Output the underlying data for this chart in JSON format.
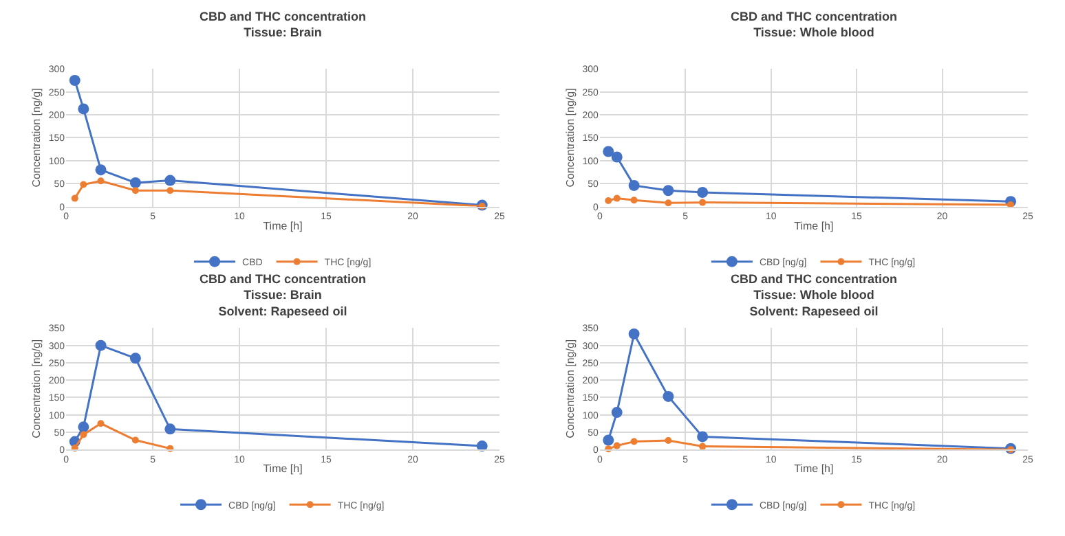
{
  "chart_data": [
    {
      "type": "line",
      "title": "CBD and THC concentration",
      "subtitle": "Tissue: Brain",
      "xlabel": "Time [h]",
      "ylabel": "Concentration [ng/g]",
      "xlim": [
        0,
        25
      ],
      "xticks": [
        0,
        5,
        10,
        15,
        20,
        25
      ],
      "ylim": [
        0,
        300
      ],
      "yticks": [
        0,
        50,
        100,
        150,
        200,
        250,
        300
      ],
      "grid": true,
      "legend": "bottom",
      "marker": "circle",
      "line_style": "solid",
      "x": [
        0.5,
        1,
        2,
        4,
        6,
        24
      ],
      "series": [
        {
          "name": "CBD",
          "color": "#4472c4",
          "values": [
            275,
            213,
            80,
            52,
            57,
            3
          ]
        },
        {
          "name": "THC [ng/g]",
          "color": "#ed7d31",
          "values": [
            18,
            48,
            56,
            35,
            35,
            1
          ]
        }
      ]
    },
    {
      "type": "line",
      "title": "CBD and THC concentration",
      "subtitle": "Tissue: Whole blood",
      "xlabel": "Time [h]",
      "ylabel": "Concentration [ng/g]",
      "xlim": [
        0,
        25
      ],
      "xticks": [
        0,
        5,
        10,
        15,
        20,
        25
      ],
      "ylim": [
        0,
        300
      ],
      "yticks": [
        0,
        50,
        100,
        150,
        200,
        250,
        300
      ],
      "grid": true,
      "legend": "bottom",
      "marker": "circle",
      "line_style": "solid",
      "x": [
        0.5,
        1,
        2,
        4,
        6,
        24
      ],
      "series": [
        {
          "name": "CBD [ng/g]",
          "color": "#4472c4",
          "values": [
            120,
            108,
            46,
            35,
            31,
            11
          ]
        },
        {
          "name": "THC [ng/g]",
          "color": "#ed7d31",
          "values": [
            13,
            18,
            14,
            8,
            9,
            4
          ]
        }
      ]
    },
    {
      "type": "line",
      "title": "CBD and THC concentration",
      "subtitle": [
        "Tissue: Brain",
        "Solvent: Rapeseed oil"
      ],
      "xlabel": "Time [h]",
      "ylabel": "Concentration [ng/g]",
      "xlim": [
        0,
        25
      ],
      "xticks": [
        0,
        5,
        10,
        15,
        20,
        25
      ],
      "ylim": [
        0,
        350
      ],
      "yticks": [
        0,
        50,
        100,
        150,
        200,
        250,
        300,
        350
      ],
      "grid": true,
      "legend": "bottom",
      "marker": "circle",
      "line_style": "solid",
      "x": [
        0.5,
        1,
        2,
        4,
        6,
        24
      ],
      "series": [
        {
          "name": "CBD [ng/g]",
          "color": "#4472c4",
          "values": [
            23,
            65,
            300,
            263,
            59,
            10
          ]
        },
        {
          "name": "THC [ng/g]",
          "color": "#ed7d31",
          "x": [
            0.5,
            1,
            2,
            4,
            6
          ],
          "values": [
            4,
            43,
            75,
            27,
            3
          ]
        }
      ]
    },
    {
      "type": "line",
      "title": "CBD and THC concentration",
      "subtitle": [
        "Tissue: Whole blood",
        "Solvent: Rapeseed oil"
      ],
      "xlabel": "Time [h]",
      "ylabel": "Concentration [ng/g]",
      "xlim": [
        0,
        25
      ],
      "xticks": [
        0,
        5,
        10,
        15,
        20,
        25
      ],
      "ylim": [
        0,
        350
      ],
      "yticks": [
        0,
        50,
        100,
        150,
        200,
        250,
        300,
        350
      ],
      "grid": true,
      "legend": "bottom",
      "marker": "circle",
      "line_style": "solid",
      "x": [
        0.5,
        1,
        2,
        4,
        6,
        24
      ],
      "series": [
        {
          "name": "CBD [ng/g]",
          "color": "#4472c4",
          "values": [
            27,
            107,
            333,
            153,
            37,
            3
          ]
        },
        {
          "name": "THC [ng/g]",
          "color": "#ed7d31",
          "values": [
            2,
            11,
            23,
            26,
            9,
            0
          ]
        }
      ]
    }
  ]
}
